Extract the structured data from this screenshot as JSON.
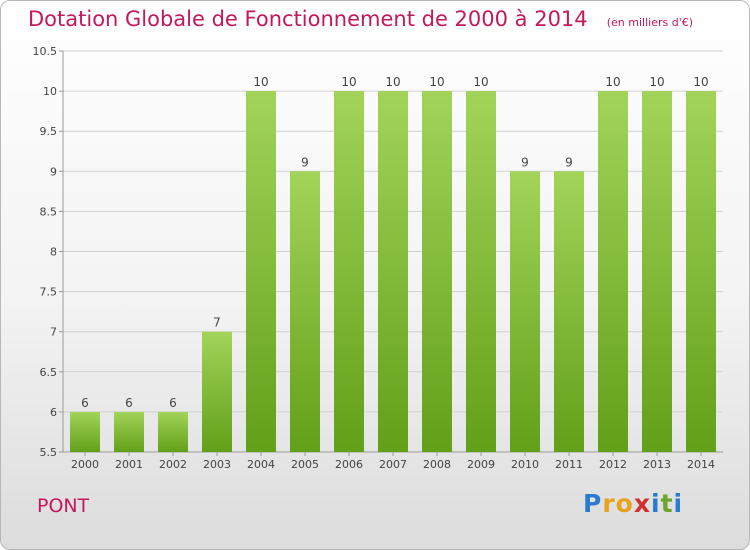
{
  "title": "Dotation Globale de Fonctionnement de 2000 à 2014",
  "unit_note": "(en milliers d'€)",
  "commune": "PONT",
  "logo": {
    "text": "Proxiti",
    "letters": [
      {
        "ch": "P",
        "color": "#2a7ad0"
      },
      {
        "ch": "r",
        "color": "#e8a21c"
      },
      {
        "ch": "o",
        "color": "#e8a21c"
      },
      {
        "ch": "x",
        "color": "#d42f2f"
      },
      {
        "ch": "i",
        "color": "#2a7ad0"
      },
      {
        "ch": "t",
        "color": "#6aa62a"
      },
      {
        "ch": "i",
        "color": "#2a7ad0"
      }
    ]
  },
  "colors": {
    "bar_light": "#a2d45a",
    "bar_dark": "#62a018",
    "title": "#c4185c",
    "grid": "#d0d0d0",
    "axis": "#9a9a9a",
    "label": "#444444"
  },
  "chart_data": {
    "type": "bar",
    "title": "Dotation Globale de Fonctionnement de 2000 à 2014",
    "subtitle": "(en milliers d'€)",
    "xlabel": "",
    "ylabel": "",
    "categories": [
      "2000",
      "2001",
      "2002",
      "2003",
      "2004",
      "2005",
      "2006",
      "2007",
      "2008",
      "2009",
      "2010",
      "2011",
      "2012",
      "2013",
      "2014"
    ],
    "values": [
      6,
      6,
      6,
      7,
      10,
      9,
      10,
      10,
      10,
      10,
      9,
      9,
      10,
      10,
      10
    ],
    "ylim": [
      5.5,
      10.5
    ],
    "yticks": [
      5.5,
      6,
      6.5,
      7,
      7.5,
      8,
      8.5,
      9,
      9.5,
      10,
      10.5
    ],
    "ytick_labels": [
      "5.5",
      "6",
      "6.5",
      "7",
      "7.5",
      "8",
      "8.5",
      "9",
      "9.5",
      "10",
      "10.5"
    ],
    "data_labels": [
      "6",
      "6",
      "6",
      "7",
      "10",
      "9",
      "10",
      "10",
      "10",
      "10",
      "9",
      "9",
      "10",
      "10",
      "10"
    ],
    "grid": true,
    "legend": "none"
  }
}
